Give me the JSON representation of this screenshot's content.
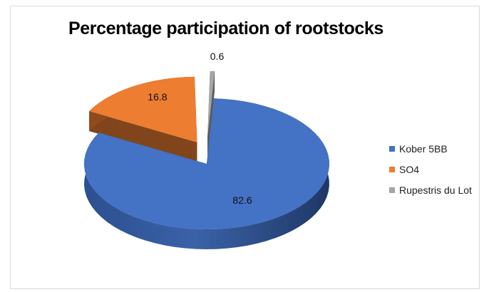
{
  "chart_data": {
    "type": "pie",
    "title": "Percentage participation of rootstocks",
    "slices": [
      {
        "name": "Kober 5BB",
        "value": 82.6,
        "label": "82.6",
        "color": "#4472C4"
      },
      {
        "name": "SO4",
        "value": 16.8,
        "label": "16.8",
        "color": "#ED7D31"
      },
      {
        "name": "Rupestris du Lot",
        "value": 0.6,
        "label": "0.6",
        "color": "#A5A5A5"
      }
    ],
    "legend_position": "right",
    "style": "3d-exploded"
  }
}
